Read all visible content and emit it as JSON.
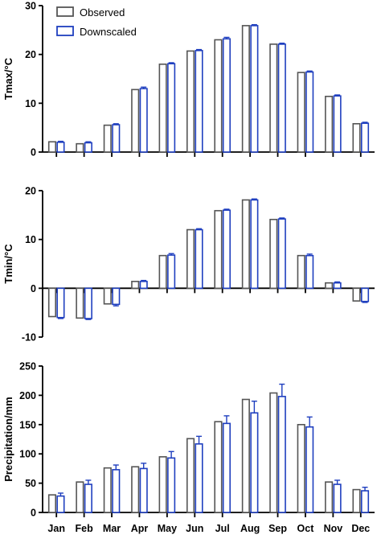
{
  "chart_data": [
    {
      "type": "bar",
      "ylabel": "Tmax/°C",
      "ylim": [
        0,
        30
      ],
      "yticks": [
        0,
        10,
        20,
        30
      ],
      "categories": [
        "Jan",
        "Feb",
        "Mar",
        "Apr",
        "May",
        "Jun",
        "Jul",
        "Aug",
        "Sep",
        "Oct",
        "Nov",
        "Dec"
      ],
      "show_xtick_labels": false,
      "legend": {
        "placement": "top-left"
      },
      "series": [
        {
          "name": "Observed",
          "values": [
            2.1,
            1.7,
            5.5,
            12.8,
            18.0,
            20.7,
            23.0,
            25.9,
            22.1,
            16.3,
            11.4,
            5.8
          ]
        },
        {
          "name": "Downscaled",
          "values": [
            2.0,
            1.9,
            5.6,
            13.0,
            18.1,
            20.8,
            23.2,
            25.9,
            22.1,
            16.4,
            11.5,
            5.9
          ],
          "errors": [
            0.2,
            0.2,
            0.2,
            0.3,
            0.2,
            0.2,
            0.3,
            0.2,
            0.2,
            0.2,
            0.2,
            0.2
          ]
        }
      ]
    },
    {
      "type": "bar",
      "ylabel": "Tmin/°C",
      "ylim": [
        -10,
        20
      ],
      "yticks": [
        -10,
        0,
        10,
        20
      ],
      "categories": [
        "Jan",
        "Feb",
        "Mar",
        "Apr",
        "May",
        "Jun",
        "Jul",
        "Aug",
        "Sep",
        "Oct",
        "Nov",
        "Dec"
      ],
      "show_xtick_labels": false,
      "series": [
        {
          "name": "Observed",
          "values": [
            -5.8,
            -6.1,
            -3.2,
            1.4,
            6.7,
            12.0,
            15.9,
            18.1,
            14.1,
            6.7,
            1.1,
            -2.6
          ]
        },
        {
          "name": "Downscaled",
          "values": [
            -6.0,
            -6.2,
            -3.3,
            1.4,
            6.8,
            12.0,
            16.0,
            18.1,
            14.2,
            6.7,
            1.1,
            -2.7
          ],
          "errors": [
            0.2,
            0.2,
            0.3,
            0.2,
            0.3,
            0.2,
            0.2,
            0.2,
            0.2,
            0.3,
            0.2,
            0.2
          ]
        }
      ]
    },
    {
      "type": "bar",
      "ylabel": "Precipitation/mm",
      "ylim": [
        0,
        250
      ],
      "yticks": [
        0,
        50,
        100,
        150,
        200,
        250
      ],
      "categories": [
        "Jan",
        "Feb",
        "Mar",
        "Apr",
        "May",
        "Jun",
        "Jul",
        "Aug",
        "Sep",
        "Oct",
        "Nov",
        "Dec"
      ],
      "show_xtick_labels": true,
      "series": [
        {
          "name": "Observed",
          "values": [
            30,
            52,
            76,
            78,
            95,
            126,
            155,
            193,
            204,
            150,
            52,
            39
          ]
        },
        {
          "name": "Downscaled",
          "values": [
            28,
            48,
            73,
            75,
            93,
            117,
            152,
            170,
            198,
            146,
            48,
            37
          ],
          "errors": [
            5,
            7,
            8,
            9,
            11,
            13,
            13,
            20,
            21,
            17,
            7,
            6
          ]
        }
      ]
    }
  ],
  "style": {
    "observed_color": "#555555",
    "downscaled_color": "#1f3fbf",
    "axis_color": "#000000"
  }
}
